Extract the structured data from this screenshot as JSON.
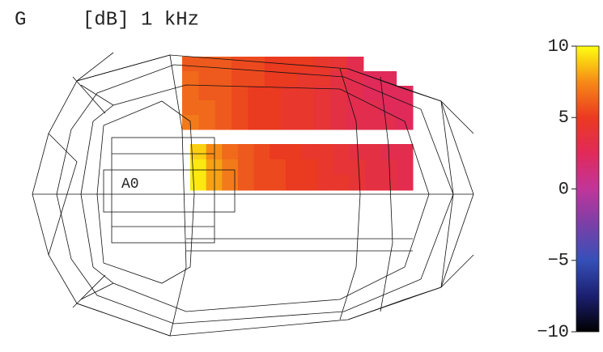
{
  "chart_data": {
    "type": "heatmap",
    "title": "G",
    "subtitle": "[dB] 1 kHz",
    "annotation": "A0",
    "colorbar": {
      "lim": [
        -10,
        10
      ],
      "ticks": [
        10,
        5,
        0,
        {
          "value": -5,
          "label": "−5"
        },
        {
          "value": -10,
          "label": "−10"
        }
      ],
      "colormap": [
        "#000000",
        "#1c1f70",
        "#3550b8",
        "#7a3fa8",
        "#c0359a",
        "#e02a5a",
        "#ea3a20",
        "#f58a18",
        "#ffff10"
      ]
    },
    "patches": [
      {
        "rows": [
          [
            6,
            6,
            6,
            5.5,
            5.5,
            5,
            5,
            5,
            4.5,
            4,
            3,
            null,
            null,
            null
          ],
          [
            6.5,
            6,
            6,
            5.5,
            5.5,
            5,
            5,
            4.5,
            4.5,
            3.5,
            3,
            2.5,
            2.5,
            null
          ],
          [
            6.5,
            6,
            6,
            5.5,
            5,
            5,
            4.5,
            4.5,
            4,
            3.5,
            3,
            2.5,
            2.5,
            2.5
          ],
          [
            6.5,
            6.5,
            6,
            5.5,
            5,
            5,
            4.5,
            4.5,
            4,
            3.5,
            3,
            3,
            2.5,
            2.5
          ],
          [
            7,
            6.5,
            6,
            5.5,
            5,
            5,
            4.5,
            4.5,
            4,
            3.5,
            3,
            3,
            3,
            2.5
          ]
        ]
      },
      {
        "rows": [
          [
            9,
            7.5,
            6.5,
            6,
            5.5,
            5,
            5,
            4.5,
            4.5,
            4,
            3.5,
            3.5,
            3,
            3
          ],
          [
            9.5,
            8,
            7,
            6,
            5.5,
            5.5,
            5,
            5,
            4.5,
            4,
            4,
            3.5,
            3.5,
            3
          ],
          [
            9.5,
            8,
            7,
            6,
            5.5,
            5.5,
            5,
            5,
            4.5,
            4.5,
            4,
            3.5,
            3.5,
            3
          ]
        ]
      }
    ]
  }
}
